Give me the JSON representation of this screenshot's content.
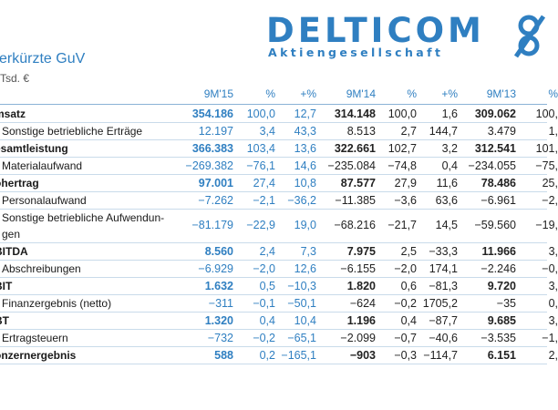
{
  "logo": {
    "wordmark": "DELTICOM",
    "tagline": "Aktiengesellschaft"
  },
  "title": "erkürzte GuV",
  "unit": "Tsd. €",
  "headers": [
    "9M'15",
    "%",
    "+%",
    "9M'14",
    "%",
    "+%",
    "9M'13",
    "%"
  ],
  "rows": [
    {
      "label": "msatz",
      "bold": true,
      "values": [
        "354.186",
        "100,0",
        "12,7",
        "314.148",
        "100,0",
        "1,6",
        "309.062",
        "100,"
      ]
    },
    {
      "label": "Sonstige betriebliche Erträge",
      "bold": false,
      "values": [
        "12.197",
        "3,4",
        "43,3",
        "8.513",
        "2,7",
        "144,7",
        "3.479",
        "1,"
      ]
    },
    {
      "label": "esamtleistung",
      "bold": true,
      "values": [
        "366.383",
        "103,4",
        "13,6",
        "322.661",
        "102,7",
        "3,2",
        "312.541",
        "101,"
      ]
    },
    {
      "label": "Materialaufwand",
      "bold": false,
      "values": [
        "−269.382",
        "−76,1",
        "14,6",
        "−235.084",
        "−74,8",
        "0,4",
        "−234.055",
        "−75,"
      ]
    },
    {
      "label": "ohertrag",
      "bold": true,
      "values": [
        "97.001",
        "27,4",
        "10,8",
        "87.577",
        "27,9",
        "11,6",
        "78.486",
        "25,"
      ]
    },
    {
      "label": "Personalaufwand",
      "bold": false,
      "values": [
        "−7.262",
        "−2,1",
        "−36,2",
        "−11.385",
        "−3,6",
        "63,6",
        "−6.961",
        "−2,"
      ]
    },
    {
      "label": "Sonstige betriebliche Aufwendun-gen",
      "bold": false,
      "tall": true,
      "values": [
        "−81.179",
        "−22,9",
        "19,0",
        "−68.216",
        "−21,7",
        "14,5",
        "−59.560",
        "−19,"
      ]
    },
    {
      "label": "BITDA",
      "bold": true,
      "values": [
        "8.560",
        "2,4",
        "7,3",
        "7.975",
        "2,5",
        "−33,3",
        "11.966",
        "3,"
      ]
    },
    {
      "label": "Abschreibungen",
      "bold": false,
      "values": [
        "−6.929",
        "−2,0",
        "12,6",
        "−6.155",
        "−2,0",
        "174,1",
        "−2.246",
        "−0,"
      ]
    },
    {
      "label": "BIT",
      "bold": true,
      "values": [
        "1.632",
        "0,5",
        "−10,3",
        "1.820",
        "0,6",
        "−81,3",
        "9.720",
        "3,"
      ]
    },
    {
      "label": "Finanzergebnis (netto)",
      "bold": false,
      "values": [
        "−311",
        "−0,1",
        "−50,1",
        "−624",
        "−0,2",
        "1705,2",
        "−35",
        "0,"
      ]
    },
    {
      "label": "BT",
      "bold": true,
      "values": [
        "1.320",
        "0,4",
        "10,4",
        "1.196",
        "0,4",
        "−87,7",
        "9.685",
        "3,"
      ]
    },
    {
      "label": "Ertragsteuern",
      "bold": false,
      "values": [
        "−732",
        "−0,2",
        "−65,1",
        "−2.099",
        "−0,7",
        "−40,6",
        "−3.535",
        "−1,"
      ]
    },
    {
      "label": "onzernergebnis",
      "bold": true,
      "values": [
        "588",
        "0,2",
        "−165,1",
        "−903",
        "−0,3",
        "−114,7",
        "6.151",
        "2,"
      ]
    }
  ],
  "colors": {
    "accent": "#2f7fc1",
    "text": "#1a1a1a",
    "rule": "#c9dbea"
  }
}
